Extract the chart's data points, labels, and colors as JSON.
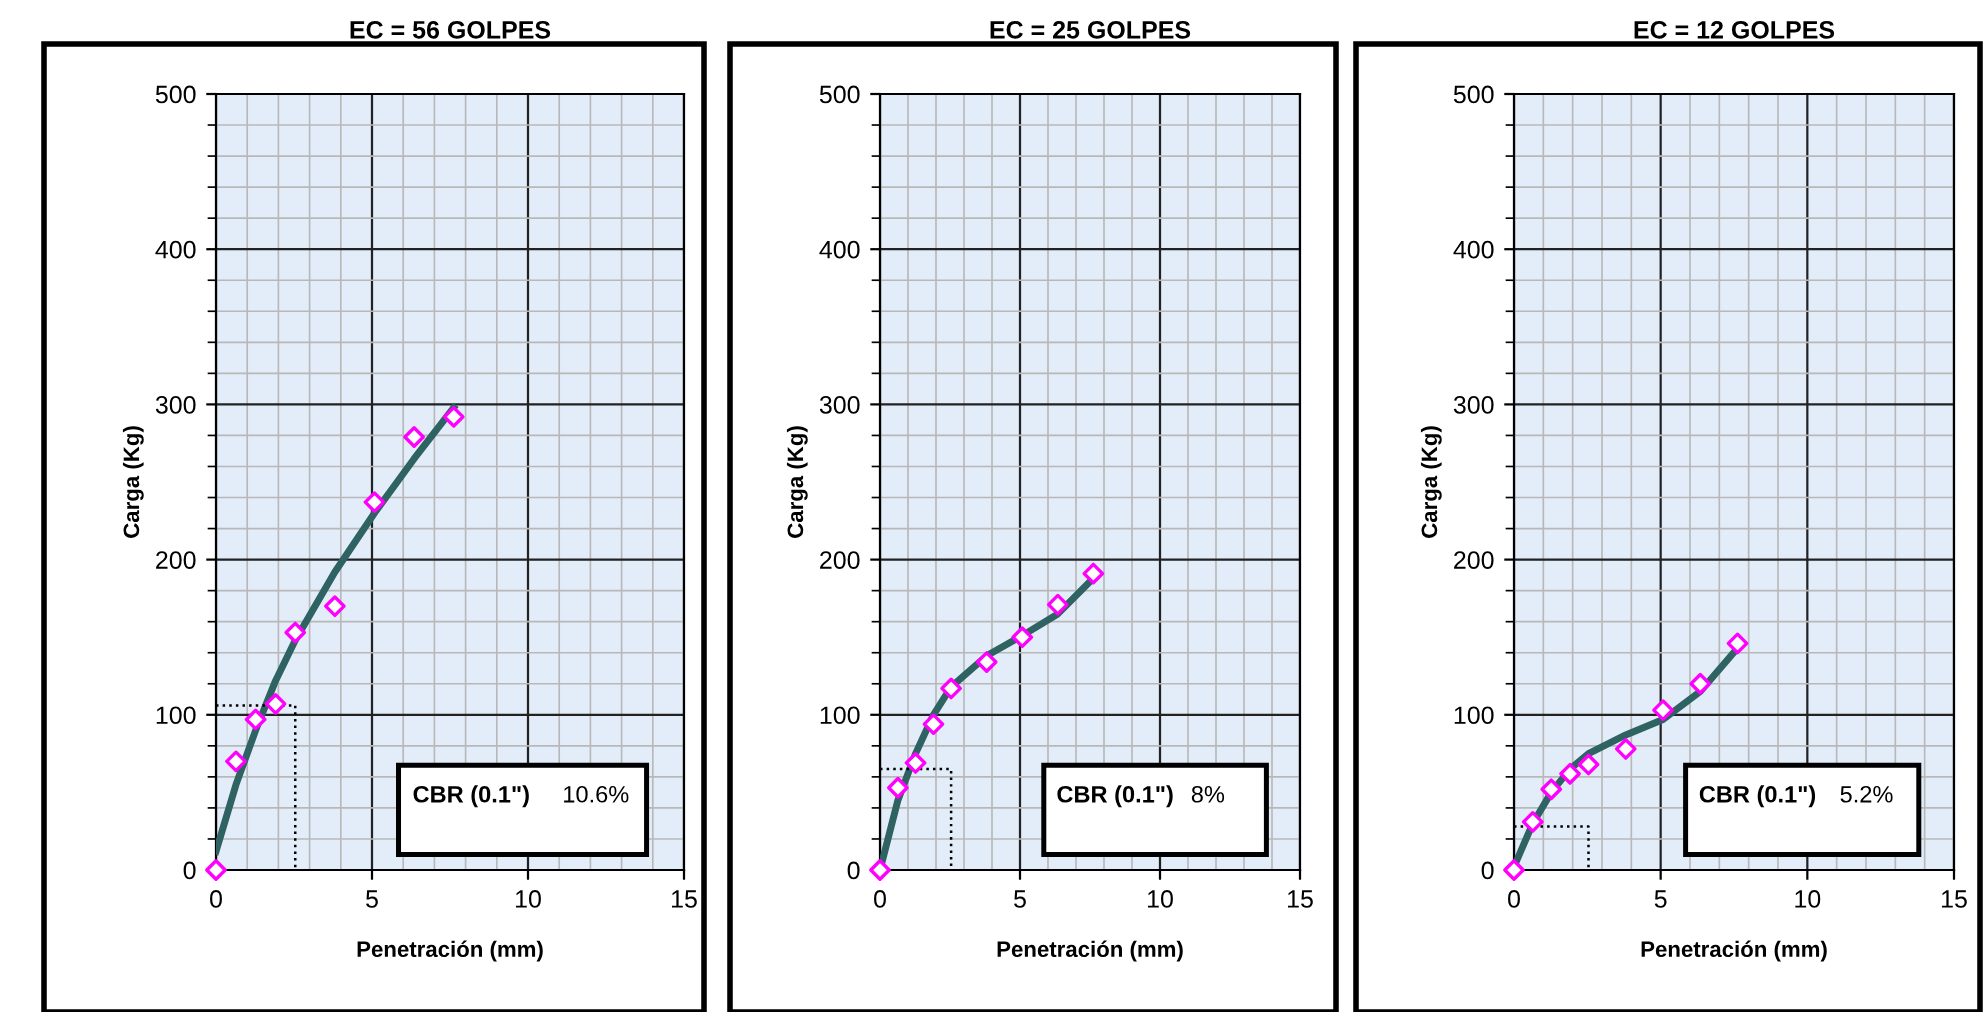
{
  "chart_data": [
    {
      "type": "scatter",
      "title": "EC = 56 GOLPES",
      "xlabel": "Penetración (mm)",
      "ylabel": "Carga (Kg)",
      "xlim": [
        0,
        15
      ],
      "xticks": [
        0,
        5,
        10,
        15
      ],
      "ylim": [
        0,
        500
      ],
      "yticks": [
        0,
        100,
        200,
        300,
        400,
        500
      ],
      "grid": true,
      "annotations": [
        "CBR (0.1\")",
        "10.6%"
      ],
      "series": [
        {
          "marker": "diamond",
          "color": "#ff00ff",
          "x": [
            0,
            0.64,
            1.27,
            1.91,
            2.54,
            3.81,
            5.08,
            6.35,
            7.62
          ],
          "values": [
            0,
            70,
            97,
            107,
            153,
            170,
            237,
            279,
            292
          ]
        },
        {
          "type": "line",
          "color": "#2f6262",
          "x": [
            0,
            0.64,
            1.27,
            1.91,
            2.54,
            3.81,
            5.08,
            6.35,
            7.62
          ],
          "values": [
            12,
            55,
            90,
            122,
            148,
            192,
            230,
            265,
            298
          ]
        },
        {
          "type": "line",
          "color": "#000000",
          "line_style": "dotted",
          "x": [
            0,
            2.54,
            2.54
          ],
          "values": [
            106,
            106,
            0
          ]
        }
      ]
    },
    {
      "type": "scatter",
      "title": "EC = 25 GOLPES",
      "xlabel": "Penetración (mm)",
      "ylabel": "Carga (Kg)",
      "xlim": [
        0,
        15
      ],
      "xticks": [
        0,
        5,
        10,
        15
      ],
      "ylim": [
        0,
        500
      ],
      "yticks": [
        0,
        100,
        200,
        300,
        400,
        500
      ],
      "grid": true,
      "annotations": [
        "CBR (0.1\")",
        "8%"
      ],
      "series": [
        {
          "marker": "diamond",
          "color": "#ff00ff",
          "x": [
            0,
            0.64,
            1.27,
            1.91,
            2.54,
            3.81,
            5.08,
            6.35,
            7.62
          ],
          "values": [
            0,
            53,
            69,
            94,
            117,
            134,
            150,
            171,
            191
          ]
        },
        {
          "type": "line",
          "color": "#2f6262",
          "x": [
            0,
            0.64,
            1.27,
            1.91,
            2.54,
            3.81,
            5.08,
            6.35,
            7.62
          ],
          "values": [
            0,
            45,
            75,
            100,
            118,
            138,
            151,
            165,
            188
          ]
        },
        {
          "type": "line",
          "color": "#000000",
          "line_style": "dotted",
          "x": [
            0,
            2.54,
            2.54
          ],
          "values": [
            65,
            65,
            0
          ]
        }
      ]
    },
    {
      "type": "scatter",
      "title": "EC = 12 GOLPES",
      "xlabel": "Penetración (mm)",
      "ylabel": "Carga (Kg)",
      "xlim": [
        0,
        15
      ],
      "xticks": [
        0,
        5,
        10,
        15
      ],
      "ylim": [
        0,
        500
      ],
      "yticks": [
        0,
        100,
        200,
        300,
        400,
        500
      ],
      "grid": true,
      "annotations": [
        "CBR (0.1\")",
        "5.2%"
      ],
      "series": [
        {
          "marker": "diamond",
          "color": "#ff00ff",
          "x": [
            0,
            0.64,
            1.27,
            1.91,
            2.54,
            3.81,
            5.08,
            6.35,
            7.62
          ],
          "values": [
            0,
            31,
            52,
            62,
            68,
            78,
            103,
            120,
            146
          ]
        },
        {
          "type": "line",
          "color": "#2f6262",
          "x": [
            0,
            0.64,
            1.27,
            1.91,
            2.54,
            3.81,
            5.08,
            6.35,
            7.62
          ],
          "values": [
            2,
            30,
            50,
            65,
            75,
            87,
            97,
            115,
            143
          ]
        },
        {
          "type": "line",
          "color": "#000000",
          "line_style": "dotted",
          "x": [
            0,
            2.54,
            2.54
          ],
          "values": [
            28,
            28,
            0
          ]
        }
      ]
    }
  ]
}
